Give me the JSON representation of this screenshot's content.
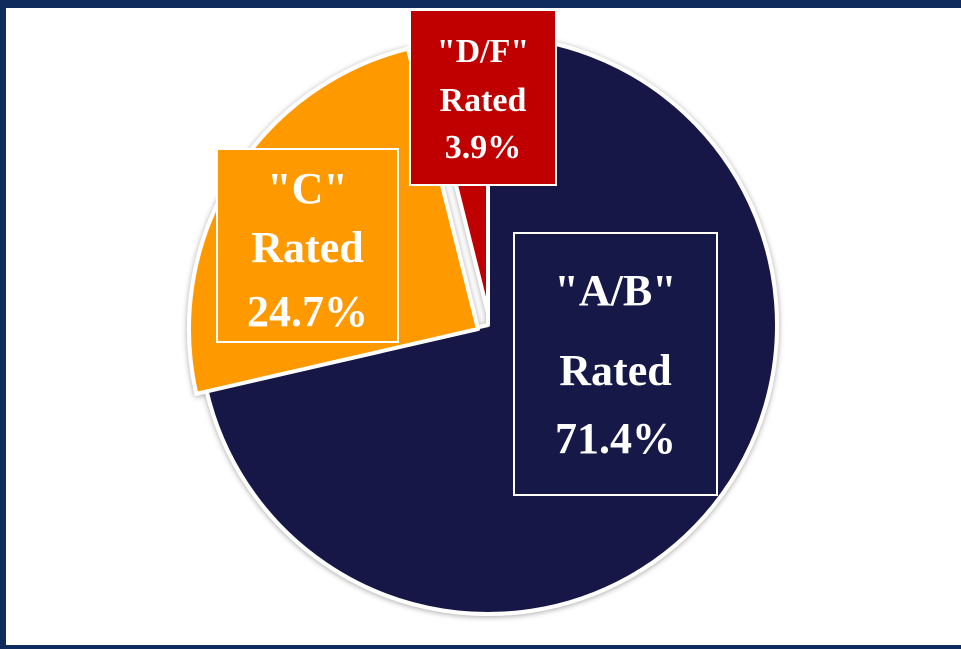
{
  "chart_data": {
    "type": "pie",
    "title": "",
    "slices": [
      {
        "quote": "\"A/B\"",
        "word": "Rated",
        "pct": "71.4%",
        "value": 71.4,
        "color": "#161847"
      },
      {
        "quote": "\"C\"",
        "word": "Rated",
        "pct": "24.7%",
        "value": 24.7,
        "color": "#ff9900"
      },
      {
        "quote": "\"D/F\"",
        "word": "Rated",
        "pct": "3.9%",
        "value": 3.9,
        "color": "#c00000"
      }
    ]
  },
  "colors": {
    "frame": "#0f2a5c",
    "label_border": "#ffffff",
    "label_text": "#ffffff"
  }
}
